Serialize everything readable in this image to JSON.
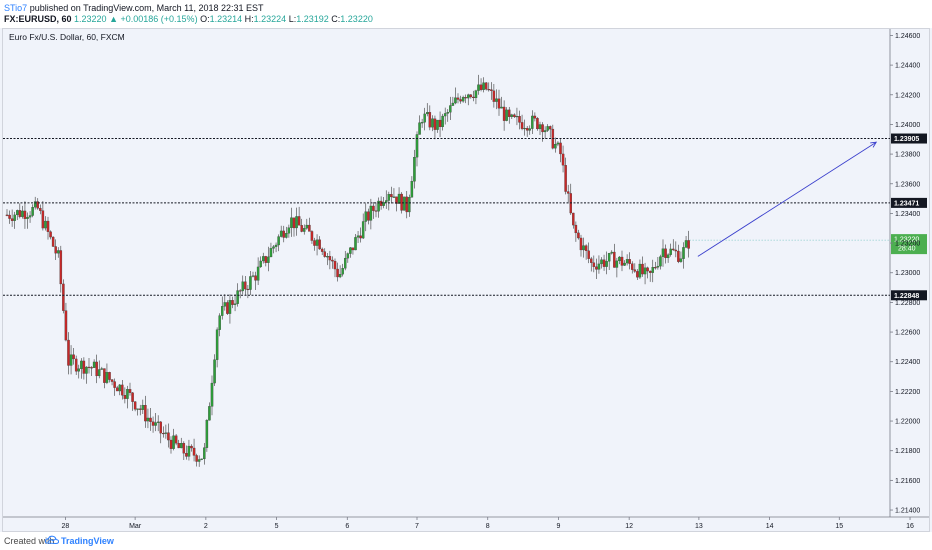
{
  "header": {
    "publisher": "STio7",
    "published_text": "published on TradingView.com, March 11, 2018 22:31 EST",
    "symbol": "FX:EURUSD, 60",
    "last": "1.23220",
    "change": "▲ +0.00186 (+0.15%)",
    "o_label": "O:",
    "o": "1.23214",
    "h_label": "H:",
    "h": "1.23224",
    "l_label": "L:",
    "l": "1.23192",
    "c_label": "C:",
    "c": "1.23220"
  },
  "footer": {
    "created_with": "Created with",
    "brand": "TradingView"
  },
  "chart_data": {
    "type": "candlestick",
    "title": "Euro Fx/U.S. Dollar, 60, FXCM",
    "ylim": [
      1.2138,
      1.2463
    ],
    "y_ticks": [
      "1.24600",
      "1.24400",
      "1.24200",
      "1.24000",
      "1.23800",
      "1.23600",
      "1.23400",
      "1.23200",
      "1.23000",
      "1.22800",
      "1.22600",
      "1.22400",
      "1.22200",
      "1.22000",
      "1.21800",
      "1.21600",
      "1.21400"
    ],
    "x_ticks": [
      "28",
      "Mar",
      "2",
      "5",
      "6",
      "7",
      "8",
      "9",
      "12",
      "13",
      "14",
      "15",
      "16"
    ],
    "horizontal_levels": [
      {
        "label": "1.23905",
        "value": 1.23905
      },
      {
        "label": "1.23471",
        "value": 1.23471
      },
      {
        "label": "1.22848",
        "value": 1.22848
      }
    ],
    "price_tag": {
      "value": 1.2322,
      "label": "1.23220",
      "countdown": "28:40"
    },
    "trend_arrow": {
      "from": {
        "x": 33.7,
        "y": 1.2311
      },
      "to": {
        "x": 42.4,
        "y": 1.2388
      }
    },
    "path_knots": [
      [
        0,
        1.2339
      ],
      [
        1.5,
        1.2343
      ],
      [
        2.5,
        1.231
      ],
      [
        3,
        1.224
      ],
      [
        4.2,
        1.2236
      ],
      [
        5.8,
        1.222
      ],
      [
        7.3,
        1.2195
      ],
      [
        8.5,
        1.218
      ],
      [
        9.6,
        1.2176
      ],
      [
        10.3,
        1.227
      ],
      [
        11.2,
        1.2284
      ],
      [
        12.2,
        1.23
      ],
      [
        13.8,
        1.2336
      ],
      [
        15.3,
        1.232
      ],
      [
        16.2,
        1.2298
      ],
      [
        17.5,
        1.2336
      ],
      [
        18.6,
        1.2356
      ],
      [
        19.5,
        1.2344
      ],
      [
        20.2,
        1.2406
      ],
      [
        21.0,
        1.2398
      ],
      [
        22.2,
        1.2421
      ],
      [
        23.4,
        1.2424
      ],
      [
        24.5,
        1.2402
      ],
      [
        26.1,
        1.2401
      ],
      [
        27.0,
        1.238
      ],
      [
        27.6,
        1.233
      ],
      [
        28.5,
        1.2306
      ],
      [
        29.6,
        1.2309
      ],
      [
        30.5,
        1.2305
      ],
      [
        31.3,
        1.2296
      ],
      [
        32.0,
        1.2316
      ],
      [
        32.9,
        1.2312
      ],
      [
        33.3,
        1.2322
      ]
    ]
  }
}
